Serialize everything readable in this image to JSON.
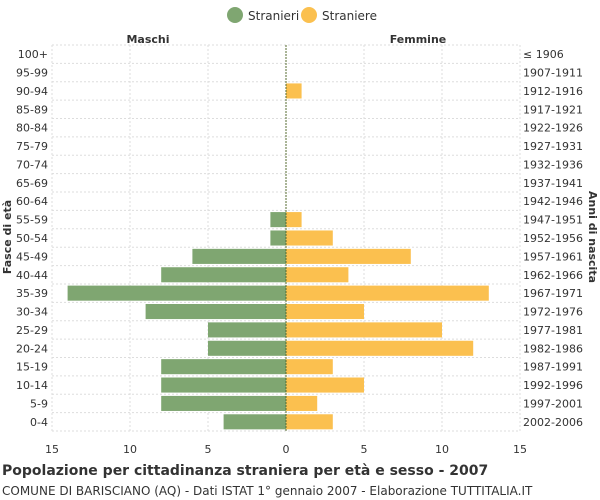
{
  "chart_data": {
    "type": "bar",
    "orientation": "horizontal-pyramid",
    "title": "Popolazione per cittadinanza straniera per età e sesso - 2007",
    "subtitle": "COMUNE DI BARISCIANO (AQ) - Dati ISTAT 1° gennaio 2007 - Elaborazione TUTTITALIA.IT",
    "left_header": "Maschi",
    "right_header": "Femmine",
    "ylabel": "Fasce di età",
    "ylabel_right": "Anni di nascita",
    "xlim": [
      -15,
      15
    ],
    "xticks": [
      15,
      10,
      5,
      0,
      5,
      10,
      15
    ],
    "grid": true,
    "legend_position": "top-center",
    "categories": [
      "100+",
      "95-99",
      "90-94",
      "85-89",
      "80-84",
      "75-79",
      "70-74",
      "65-69",
      "60-64",
      "55-59",
      "50-54",
      "45-49",
      "40-44",
      "35-39",
      "30-34",
      "25-29",
      "20-24",
      "15-19",
      "10-14",
      "5-9",
      "0-4"
    ],
    "birth_years": [
      "≤ 1906",
      "1907-1911",
      "1912-1916",
      "1917-1921",
      "1922-1926",
      "1927-1931",
      "1932-1936",
      "1937-1941",
      "1942-1946",
      "1947-1951",
      "1952-1956",
      "1957-1961",
      "1962-1966",
      "1967-1971",
      "1972-1976",
      "1977-1981",
      "1982-1986",
      "1987-1991",
      "1992-1996",
      "1997-2001",
      "2002-2006"
    ],
    "series": [
      {
        "name": "Stranieri",
        "color": "#7fa671",
        "values": [
          0,
          0,
          0,
          0,
          0,
          0,
          0,
          0,
          0,
          1,
          1,
          6,
          8,
          14,
          9,
          5,
          5,
          8,
          8,
          8,
          4
        ]
      },
      {
        "name": "Straniere",
        "color": "#fbc04f",
        "values": [
          0,
          0,
          1,
          0,
          0,
          0,
          0,
          0,
          0,
          1,
          3,
          8,
          4,
          13,
          5,
          10,
          12,
          3,
          5,
          2,
          3
        ]
      }
    ]
  }
}
